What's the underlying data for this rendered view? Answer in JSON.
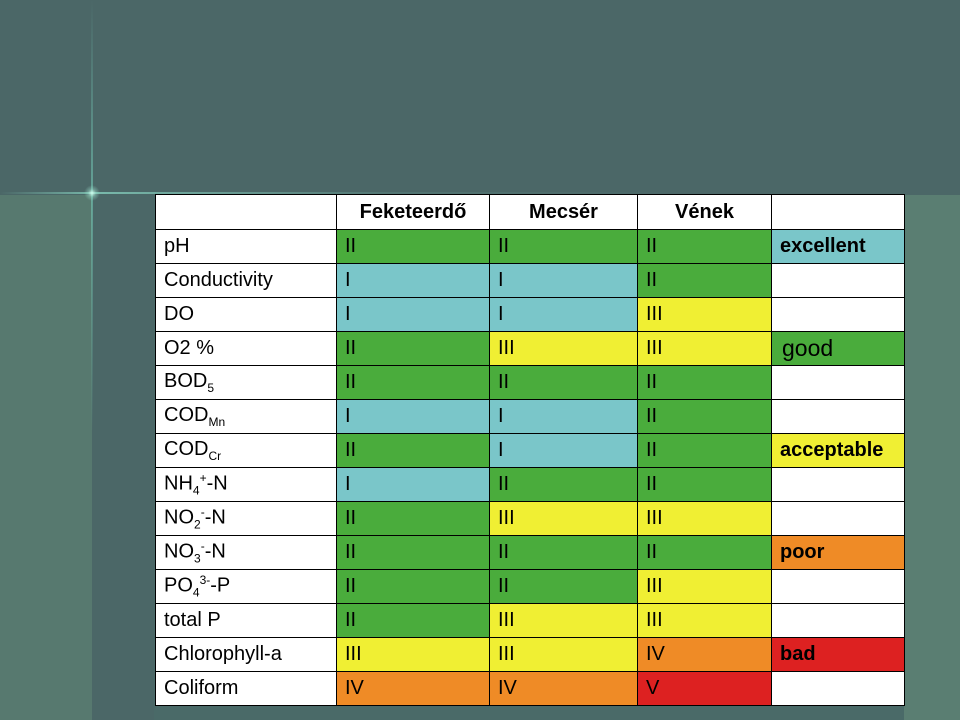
{
  "colors": {
    "I": "#7ac6c9",
    "II": "#4aac3c",
    "III": "#f0ef33",
    "IV": "#ef8b26",
    "V": "#dd2121",
    "background": "#4b6767"
  },
  "table": {
    "headers": [
      "",
      "Feketeerdő",
      "Mecsér",
      "Vének"
    ],
    "rows": [
      {
        "param": "pH",
        "sub": "",
        "sup": "",
        "suffix": "",
        "values": [
          "II",
          "II",
          "II"
        ]
      },
      {
        "param": "Conductivity",
        "sub": "",
        "sup": "",
        "suffix": "",
        "values": [
          "I",
          "I",
          "II"
        ]
      },
      {
        "param": "DO",
        "sub": "",
        "sup": "",
        "suffix": "",
        "values": [
          "I",
          "I",
          "III"
        ]
      },
      {
        "param": "O2 %",
        "sub": "",
        "sup": "",
        "suffix": "",
        "values": [
          "II",
          "III",
          "III"
        ]
      },
      {
        "param": "BOD",
        "sub": "5",
        "sup": "",
        "suffix": "",
        "values": [
          "II",
          "II",
          "II"
        ]
      },
      {
        "param": "COD",
        "sub": "Mn",
        "sup": "",
        "suffix": "",
        "values": [
          "I",
          "I",
          "II"
        ]
      },
      {
        "param": "COD",
        "sub": "Cr",
        "sup": "",
        "suffix": "",
        "values": [
          "II",
          "I",
          "II"
        ]
      },
      {
        "param": "NH",
        "sub": "4",
        "sup": "+",
        "suffix": "-N",
        "values": [
          "I",
          "II",
          "II"
        ]
      },
      {
        "param": "NO",
        "sub": "2",
        "sup": "-",
        "suffix": "-N",
        "values": [
          "II",
          "III",
          "III"
        ]
      },
      {
        "param": "NO",
        "sub": "3",
        "sup": "-",
        "suffix": "-N",
        "values": [
          "II",
          "II",
          "II"
        ]
      },
      {
        "param": "PO",
        "sub": "4",
        "sup": "3-",
        "suffix": "-P",
        "values": [
          "II",
          "II",
          "III"
        ]
      },
      {
        "param": "total P",
        "sub": "",
        "sup": "",
        "suffix": "",
        "values": [
          "II",
          "III",
          "III"
        ]
      },
      {
        "param": "Chlorophyll-a",
        "sub": "",
        "sup": "",
        "suffix": "",
        "values": [
          "III",
          "III",
          "IV"
        ]
      },
      {
        "param": "Coliform",
        "sub": "",
        "sup": "",
        "suffix": "",
        "values": [
          "IV",
          "IV",
          "V"
        ]
      }
    ],
    "legend": [
      "excellent",
      "",
      "",
      "good",
      "",
      "",
      "acceptable",
      "",
      "",
      "poor",
      "",
      "",
      "bad",
      ""
    ],
    "legend_class": [
      "I",
      "",
      "",
      "II",
      "",
      "",
      "III",
      "",
      "",
      "IV",
      "",
      "",
      "V",
      ""
    ]
  }
}
